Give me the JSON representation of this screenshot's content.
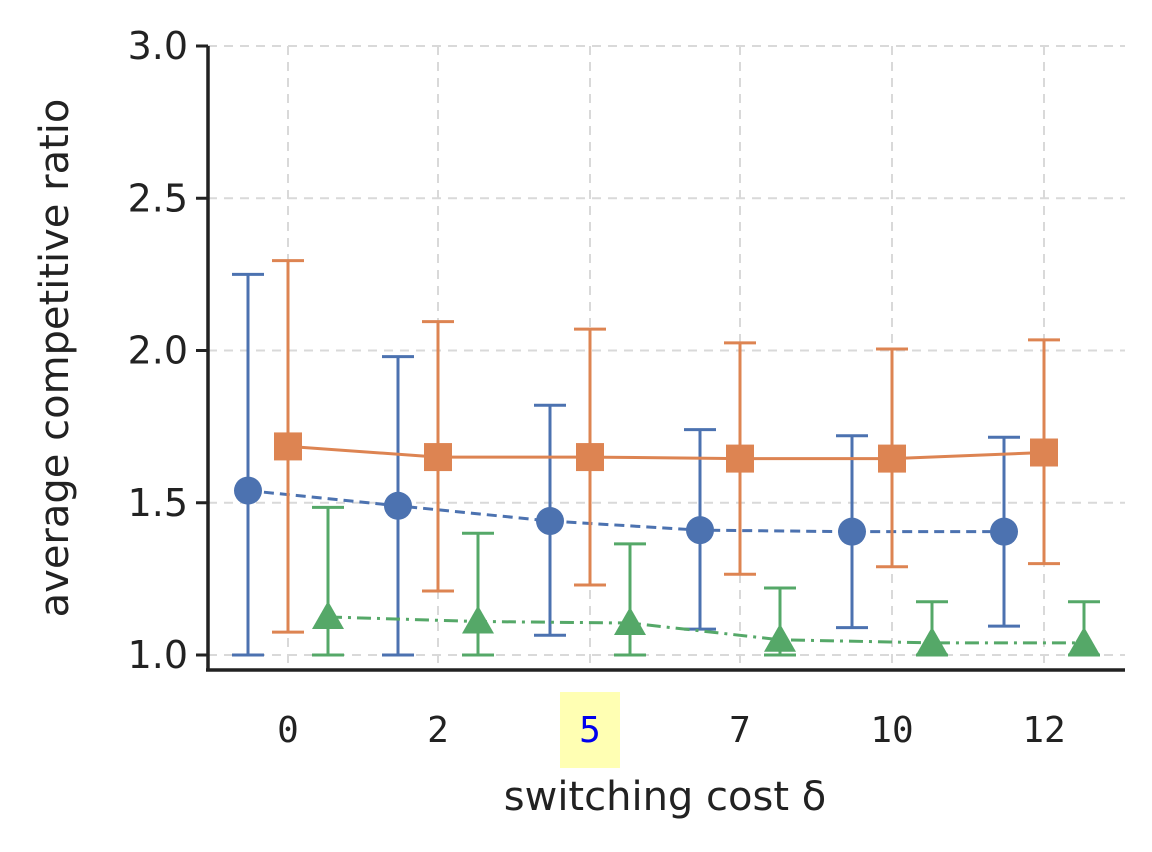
{
  "chart_data": {
    "type": "scatter",
    "title": "",
    "xlabel": "switching cost δ",
    "ylabel": "average competitive ratio",
    "categories": [
      "0",
      "2",
      "5",
      "7",
      "10",
      "12"
    ],
    "highlighted_category": "5",
    "highlight_color": "#ffffb3",
    "highlight_text_color": "#0000ee",
    "ylim": [
      1.0,
      3.0
    ],
    "yticks": [
      "1.0",
      "1.5",
      "2.0",
      "2.5",
      "3.0"
    ],
    "grid": true,
    "legend": "none",
    "series": [
      {
        "color": "#4c72b0",
        "marker": "circle",
        "linestyle": "dashed",
        "values": [
          1.54,
          1.49,
          1.44,
          1.41,
          1.405,
          1.405
        ],
        "err_low": [
          1.0,
          1.0,
          1.065,
          1.085,
          1.09,
          1.095
        ],
        "err_high": [
          2.25,
          1.98,
          1.82,
          1.74,
          1.72,
          1.715
        ]
      },
      {
        "color": "#dd8452",
        "marker": "square",
        "linestyle": "solid",
        "values": [
          1.685,
          1.65,
          1.65,
          1.645,
          1.645,
          1.665
        ],
        "err_low": [
          1.075,
          1.21,
          1.23,
          1.265,
          1.29,
          1.3
        ],
        "err_high": [
          2.295,
          2.095,
          2.07,
          2.025,
          2.005,
          2.035
        ]
      },
      {
        "color": "#55a868",
        "marker": "triangle",
        "linestyle": "dashdot",
        "values": [
          1.125,
          1.11,
          1.105,
          1.05,
          1.04,
          1.04
        ],
        "err_low": [
          1.0,
          1.0,
          1.0,
          1.0,
          1.0,
          1.0
        ],
        "err_high": [
          1.485,
          1.4,
          1.365,
          1.22,
          1.175,
          1.175
        ]
      }
    ]
  }
}
